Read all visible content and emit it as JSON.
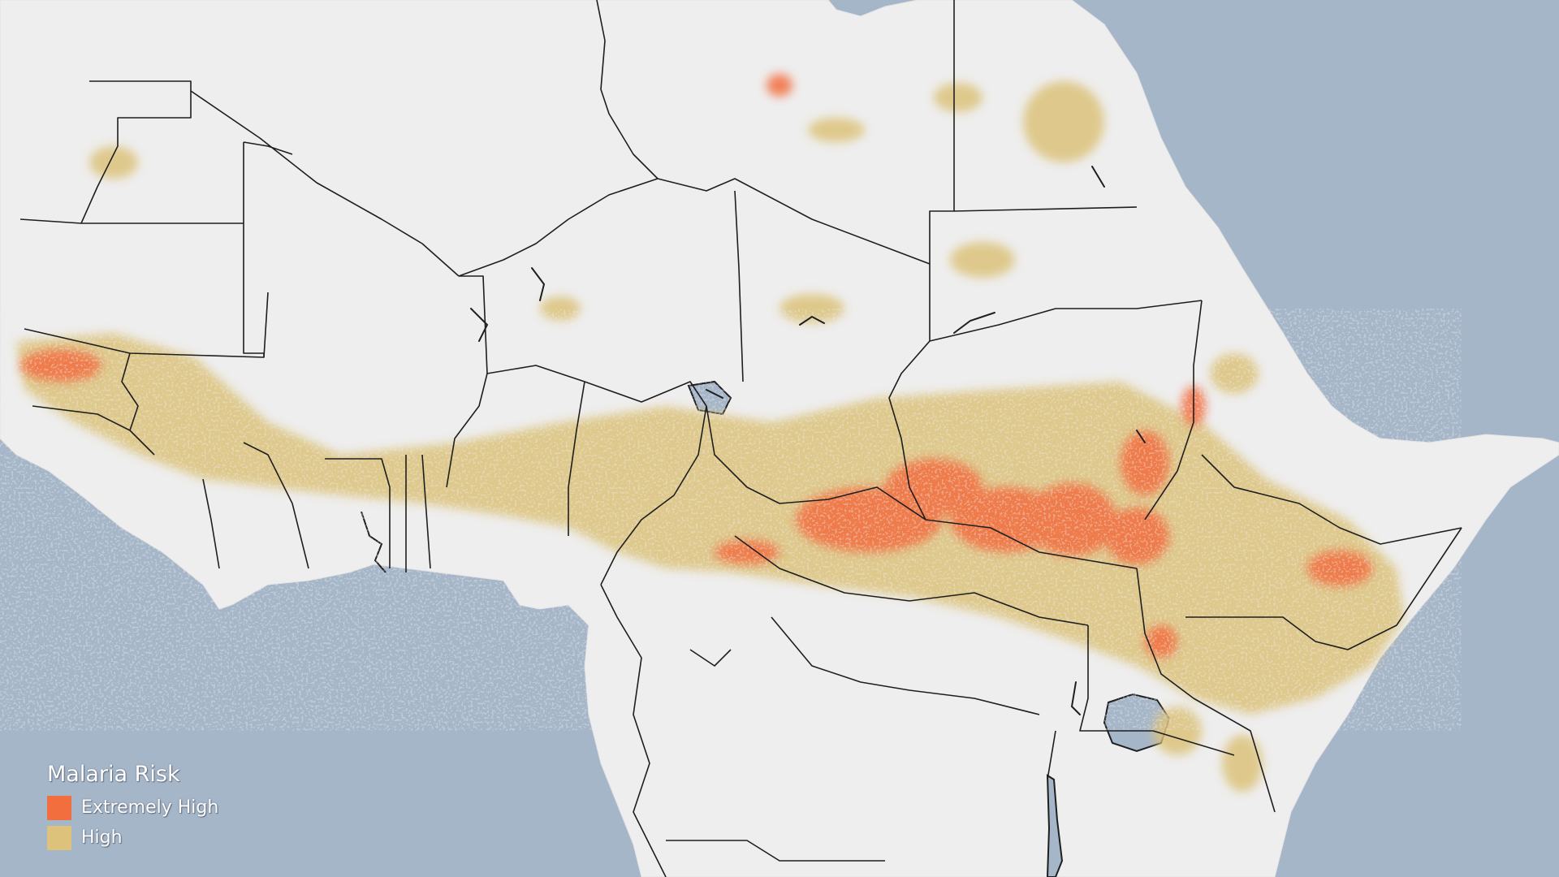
{
  "colors": {
    "ocean": "#a6b6c9",
    "land": "#eeeeee",
    "border": "#1e1e1e",
    "extremely_high": "#f36e3f",
    "high": "#dcc27a"
  },
  "legend": {
    "title": "Malaria Risk",
    "items": [
      {
        "label": "Extremely High",
        "color": "#f36e3f"
      },
      {
        "label": "High",
        "color": "#dcc27a"
      }
    ]
  }
}
